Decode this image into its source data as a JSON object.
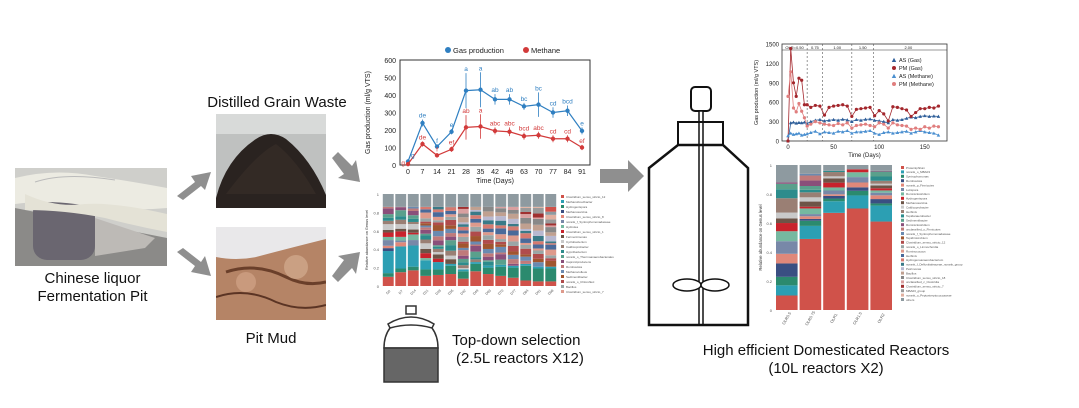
{
  "source": {
    "title_line1": "Chinese liquor",
    "title_line2": "Fermentation Pit"
  },
  "materials": {
    "grain_label": "Distilled Grain Waste",
    "mud_label": "Pit Mud"
  },
  "top_down": {
    "line1": "Top-down selection",
    "line2": "(2.5L reactors X12)"
  },
  "domesticated": {
    "line1": "High efficient Domesticated Reactors",
    "line2": "(10L reactors X2)"
  },
  "colors": {
    "arrow": "#8f8f8f",
    "blue": "#2f7fc1",
    "red": "#d23a3a",
    "darkred": "#a3262c",
    "pink": "#e07e7e",
    "lightblue": "#4a8fd0"
  },
  "chart_data": [
    {
      "type": "line",
      "title": "",
      "xlabel": "Time (Days)",
      "ylabel": "Gas production (ml/g VTS)",
      "ylim": [
        0,
        600
      ],
      "yticks": [
        "0",
        "100",
        "200",
        "300",
        "400",
        "500",
        "600"
      ],
      "categories": [
        "0",
        "7",
        "14",
        "21",
        "28",
        "35",
        "42",
        "49",
        "63",
        "70",
        "77",
        "84",
        "91"
      ],
      "legend": [
        "Gas production",
        "Methane"
      ],
      "series": [
        {
          "name": "Gas production",
          "values": [
            20,
            240,
            105,
            190,
            425,
            430,
            375,
            375,
            335,
            345,
            300,
            310,
            195
          ],
          "errors": [
            10,
            20,
            10,
            15,
            100,
            100,
            30,
            30,
            20,
            70,
            30,
            30,
            20
          ],
          "letters": [
            "g",
            "de",
            "f",
            "e",
            "a",
            "a",
            "ab",
            "ab",
            "bc",
            "bc",
            "cd",
            "bcd",
            "e"
          ]
        },
        {
          "name": "Methane",
          "values": [
            5,
            120,
            55,
            90,
            215,
            220,
            195,
            190,
            165,
            170,
            150,
            150,
            100
          ],
          "errors": [
            5,
            15,
            10,
            15,
            70,
            70,
            20,
            25,
            20,
            20,
            20,
            20,
            15
          ],
          "letters": [
            "g",
            "de",
            "f",
            "ef",
            "ab",
            "a",
            "abc",
            "abc",
            "bcd",
            "abc",
            "cd",
            "cd",
            "ef"
          ]
        }
      ]
    },
    {
      "type": "bar",
      "stacked": true,
      "ylabel": "Relative abundance on Genus level",
      "ylim": [
        0,
        1
      ],
      "yticks": [
        "0",
        "0.2",
        "0.4",
        "0.6",
        "0.8",
        "1"
      ],
      "categories": [
        "D0",
        "D7",
        "D14",
        "D21",
        "D28",
        "D35",
        "D42",
        "D49",
        "D63",
        "D70",
        "D77",
        "D84",
        "D91",
        "D98"
      ],
      "legend": [
        "Clostridium_sensu_stricto_12",
        "Methanobrevibacter",
        "Hydrogenispora",
        "Methanosarcina",
        "Clostridium_sensu_stricto_8",
        "norank_f_Syntrophomonadaceae",
        "Hydrolea",
        "Clostridium_sensu_stricto_1",
        "Fermentimonas",
        "Cyclobacterium",
        "Caldicoprobacter",
        "Hypnibacterium",
        "norank_o_Thermoanaerobacterales",
        "Caproiciproducens",
        "Romboutsia",
        "Methanoculleus",
        "Sedimentibacter",
        "norank_o_Chloroflexi",
        "Bacillus",
        "Clostridium_sensu_stricto_7"
      ],
      "series_bottom": [
        {
          "name": "Clostridium_sensu_stricto_12",
          "values": [
            0.1,
            0.15,
            0.17,
            0.11,
            0.12,
            0.13,
            0.08,
            0.16,
            0.13,
            0.11,
            0.09,
            0.06,
            0.05,
            0.05
          ]
        },
        {
          "name": "Hydrogenispora",
          "values": [
            0.04,
            0.04,
            0.04,
            0.07,
            0.06,
            0.09,
            0.08,
            0.08,
            0.07,
            0.1,
            0.11,
            0.16,
            0.14,
            0.14
          ]
        },
        {
          "name": "Methanobrevibacter",
          "values": [
            0.24,
            0.24,
            0.23,
            0.1,
            0.08,
            0.02,
            0.02,
            0.02,
            0.02,
            0.02,
            0.02,
            0.02,
            0.02,
            0.02
          ]
        }
      ]
    },
    {
      "type": "line",
      "xlabel": "Time (Days)",
      "ylabel": "Gas production (ml/g VTS)",
      "ylim": [
        0,
        1500
      ],
      "yticks": [
        "0",
        "300",
        "600",
        "900",
        "1200",
        "1500"
      ],
      "xticks": [
        "0",
        "50",
        "100",
        "150"
      ],
      "olr_labels": [
        "OLR=0.50",
        "0.75",
        "1.00",
        "1.50",
        "2.00"
      ],
      "olr_boundaries_days": [
        21,
        38,
        70,
        94
      ],
      "legend": [
        "AS (Gas)",
        "PM (Gas)",
        "AS (Methane)",
        "PM (Methane)"
      ],
      "series": [
        {
          "name": "AS (Gas)",
          "x": [
            0,
            3,
            6,
            9,
            12,
            15,
            18,
            21,
            25,
            30,
            35,
            40,
            45,
            50,
            55,
            60,
            65,
            70,
            75,
            80,
            85,
            90,
            95,
            100,
            105,
            110,
            115,
            120,
            125,
            130,
            135,
            140,
            145,
            150,
            155,
            160,
            165
          ],
          "values": [
            0,
            280,
            290,
            275,
            285,
            280,
            290,
            270,
            300,
            320,
            330,
            310,
            320,
            330,
            320,
            335,
            325,
            300,
            330,
            320,
            335,
            340,
            320,
            310,
            300,
            280,
            330,
            320,
            330,
            350,
            370,
            360,
            380,
            390,
            380,
            385,
            380
          ]
        },
        {
          "name": "PM (Gas)",
          "x": [
            0,
            3,
            6,
            9,
            12,
            15,
            18,
            21,
            25,
            30,
            35,
            40,
            45,
            50,
            55,
            60,
            65,
            70,
            75,
            80,
            85,
            90,
            95,
            100,
            105,
            110,
            115,
            120,
            125,
            130,
            135,
            140,
            145,
            150,
            155,
            160,
            165
          ],
          "values": [
            0,
            1430,
            900,
            690,
            970,
            940,
            560,
            560,
            520,
            550,
            540,
            400,
            520,
            540,
            550,
            560,
            540,
            380,
            490,
            500,
            510,
            520,
            390,
            470,
            420,
            310,
            530,
            520,
            500,
            480,
            380,
            440,
            500,
            500,
            520,
            510,
            540
          ]
        },
        {
          "name": "AS (Methane)",
          "x": [
            0,
            3,
            6,
            9,
            12,
            15,
            18,
            21,
            25,
            30,
            35,
            40,
            45,
            50,
            55,
            60,
            65,
            70,
            75,
            80,
            85,
            90,
            95,
            100,
            105,
            110,
            115,
            120,
            125,
            130,
            135,
            140,
            145,
            150,
            155,
            160,
            165
          ],
          "values": [
            80,
            120,
            100,
            110,
            120,
            90,
            100,
            110,
            130,
            150,
            110,
            140,
            130,
            120,
            150,
            140,
            160,
            120,
            140,
            140,
            150,
            160,
            120,
            100,
            130,
            140,
            120,
            130,
            140,
            150,
            120,
            140,
            160,
            140,
            130,
            120,
            90
          ]
        },
        {
          "name": "PM (Methane)",
          "x": [
            0,
            3,
            6,
            9,
            12,
            15,
            18,
            21,
            25,
            30,
            35,
            40,
            45,
            50,
            55,
            60,
            65,
            70,
            75,
            80,
            85,
            90,
            95,
            100,
            105,
            110,
            115,
            120,
            125,
            130,
            135,
            140,
            145,
            150,
            155,
            160,
            165
          ],
          "values": [
            690,
            1070,
            510,
            450,
            580,
            460,
            360,
            230,
            260,
            300,
            280,
            260,
            250,
            240,
            270,
            250,
            280,
            200,
            240,
            250,
            260,
            240,
            220,
            280,
            260,
            200,
            280,
            250,
            240,
            230,
            180,
            200,
            180,
            220,
            200,
            230,
            220
          ]
        }
      ]
    },
    {
      "type": "bar",
      "stacked": true,
      "ylabel": "Relative abundance on Genus level",
      "ylim": [
        0,
        1
      ],
      "yticks": [
        "0",
        "0.2",
        "0.4",
        "0.6",
        "0.8",
        "1"
      ],
      "categories": [
        "OLR0.5",
        "OLR0.75",
        "OLR1",
        "OLR1.5",
        "OLR2"
      ],
      "legend": [
        "Proteiniphilum",
        "norank_o_MBA03",
        "Syntrophomonas",
        "Romboutsia",
        "norank_p_Firmicutes",
        "Lutispora",
        "Ruminiclostridium",
        "Hydrogenispora",
        "Methanosarcina",
        "Caldicoprobacter",
        "Herbinix",
        "Tepidanaerobacter",
        "Sedimentibacter",
        "Ruminiclostridium",
        "unclassified_o_Firmicutes",
        "norank_f_Syntrophomonadaceae",
        "Tepidimicrobium",
        "Clostridium_sensu_stricto_12",
        "norank_o_Limnochordia",
        "Ruminococcus",
        "Herbinix",
        "Hydrogenoanaerobacterium",
        "norank_f_Defluviitaleaceae_norank_group",
        "Petrimonas",
        "Bacillus",
        "Clostridium_sensu_stricto_18",
        "unclassified_c_Clostridia",
        "Clostridium_sensu_stricto_7",
        "MBA03_group",
        "norank_o_Peptostreptococcaceae",
        "others"
      ],
      "series_bottom": [
        {
          "name": "Proteiniphilum",
          "values": [
            0.1,
            0.49,
            0.67,
            0.7,
            0.61
          ]
        },
        {
          "name": "norank_o_MBA03",
          "values": [
            0.07,
            0.09,
            0.08,
            0.09,
            0.11
          ]
        }
      ]
    }
  ]
}
